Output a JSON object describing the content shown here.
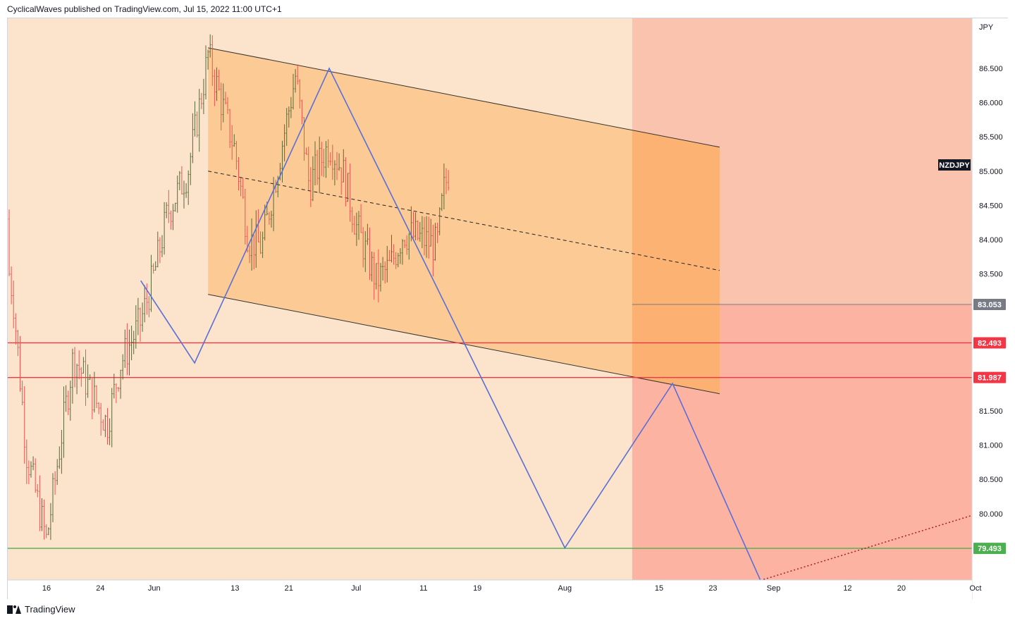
{
  "header": {
    "publisher_line": "CyclicalWaves published on TradingView.com, Jul 15, 2022 11:00 UTC+1"
  },
  "footer": {
    "brand": "TradingView",
    "logo_icon": "tradingview-logo-icon"
  },
  "colors": {
    "bg_left": "#fbe3cc",
    "bg_right_upper": "#f9c3ad",
    "bg_right_lower": "#fdb3a2",
    "channel_fill": "#fbc68a",
    "channel_fill_overlap": "#fbac6c",
    "candle_up": "#5b6a37",
    "candle_down": "#ef5350",
    "red_level": "#f23645",
    "green_level": "#4caf50",
    "grey_level": "#787b86",
    "zigzag": "#5a6fd8",
    "trend_dotted": "#b22222"
  },
  "chart_data": {
    "type": "candlestick",
    "symbol": "NZDJPY",
    "currency_label": "JPY",
    "price_axis_ticks": [
      "86.500",
      "86.000",
      "85.500",
      "85.000",
      "84.500",
      "84.000",
      "83.500",
      "81.500",
      "81.000",
      "80.500",
      "80.000"
    ],
    "ylim": [
      78.6,
      87.2
    ],
    "time_axis_labels": [
      "16",
      "24",
      "Jun",
      "13",
      "21",
      "Jul",
      "11",
      "19",
      "Aug",
      "15",
      "23",
      "Sep",
      "12",
      "20",
      "Oct"
    ],
    "price_levels": [
      {
        "value": 83.053,
        "label": "83.053",
        "color": "#787b86"
      },
      {
        "value": 82.493,
        "label": "82.493",
        "color": "#f23645"
      },
      {
        "value": 81.987,
        "label": "81.987",
        "color": "#f23645"
      },
      {
        "value": 79.493,
        "label": "79.493",
        "color": "#4caf50"
      }
    ],
    "close_trend": [
      [
        "2022-05-09",
        84.3
      ],
      [
        "2022-05-11",
        83.2
      ],
      [
        "2022-05-13",
        80.9
      ],
      [
        "2022-05-16",
        79.6
      ],
      [
        "2022-05-18",
        81.0
      ],
      [
        "2022-05-20",
        82.3
      ],
      [
        "2022-05-23",
        81.7
      ],
      [
        "2022-05-25",
        81.3
      ],
      [
        "2022-05-27",
        82.2
      ],
      [
        "2022-05-30",
        82.8
      ],
      [
        "2022-06-01",
        83.5
      ],
      [
        "2022-06-03",
        84.4
      ],
      [
        "2022-06-06",
        85.0
      ],
      [
        "2022-06-08",
        86.1
      ],
      [
        "2022-06-09",
        86.7
      ],
      [
        "2022-06-13",
        85.3
      ],
      [
        "2022-06-15",
        84.0
      ],
      [
        "2022-06-17",
        83.9
      ],
      [
        "2022-06-20",
        85.4
      ],
      [
        "2022-06-22",
        86.4
      ],
      [
        "2022-06-24",
        84.8
      ],
      [
        "2022-06-27",
        85.4
      ],
      [
        "2022-06-29",
        85.0
      ],
      [
        "2022-07-01",
        84.2
      ],
      [
        "2022-07-04",
        83.4
      ],
      [
        "2022-07-06",
        83.6
      ],
      [
        "2022-07-08",
        84.1
      ],
      [
        "2022-07-11",
        84.0
      ],
      [
        "2022-07-13",
        83.9
      ],
      [
        "2022-07-14",
        84.7
      ],
      [
        "2022-07-15",
        85.1
      ]
    ],
    "channel": {
      "upper": [
        [
          "2022-06-09",
          86.8
        ],
        [
          "2022-08-24",
          85.35
        ]
      ],
      "middle": [
        [
          "2022-06-09",
          85.0
        ],
        [
          "2022-08-24",
          83.55
        ]
      ],
      "lower": [
        [
          "2022-06-09",
          83.2
        ],
        [
          "2022-08-24",
          81.75
        ]
      ]
    },
    "zigzag": [
      [
        "2022-05-30",
        83.4
      ],
      [
        "2022-06-07",
        82.2
      ],
      [
        "2022-06-27",
        86.5
      ],
      [
        "2022-08-01",
        79.5
      ],
      [
        "2022-08-17",
        81.9
      ],
      [
        "2022-09-01",
        78.6
      ]
    ],
    "dotted_trend": [
      [
        "2022-08-16",
        78.6
      ],
      [
        "2022-10-03",
        80.05
      ]
    ],
    "projection_zone_start": "2022-08-11",
    "grid": false
  }
}
